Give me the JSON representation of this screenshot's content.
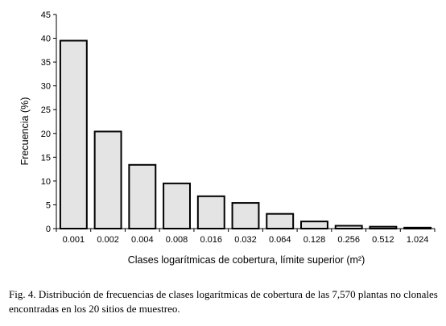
{
  "chart_data": {
    "type": "bar",
    "categories": [
      "0.001",
      "0.002",
      "0.004",
      "0.008",
      "0.016",
      "0.032",
      "0.064",
      "0.128",
      "0.256",
      "0.512",
      "1.024"
    ],
    "values": [
      39.5,
      20.4,
      13.4,
      9.5,
      6.8,
      5.4,
      3.1,
      1.5,
      0.6,
      0.4,
      0.2
    ],
    "xlabel": "Clases logarítmicas de cobertura, límite superior (m²)",
    "ylabel": "Frecuencia (%)",
    "ylim": [
      0,
      45
    ],
    "yticks": [
      0,
      5,
      10,
      15,
      20,
      25,
      30,
      35,
      40,
      45
    ],
    "bar_color": "#e4e4e4",
    "bar_stroke": "#000000",
    "grid": false
  },
  "caption": "Fig. 4. Distribución de frecuencias de clases logarítmicas de cobertura de las 7,570 plantas no clonales encontradas en los 20 sitios de muestreo."
}
